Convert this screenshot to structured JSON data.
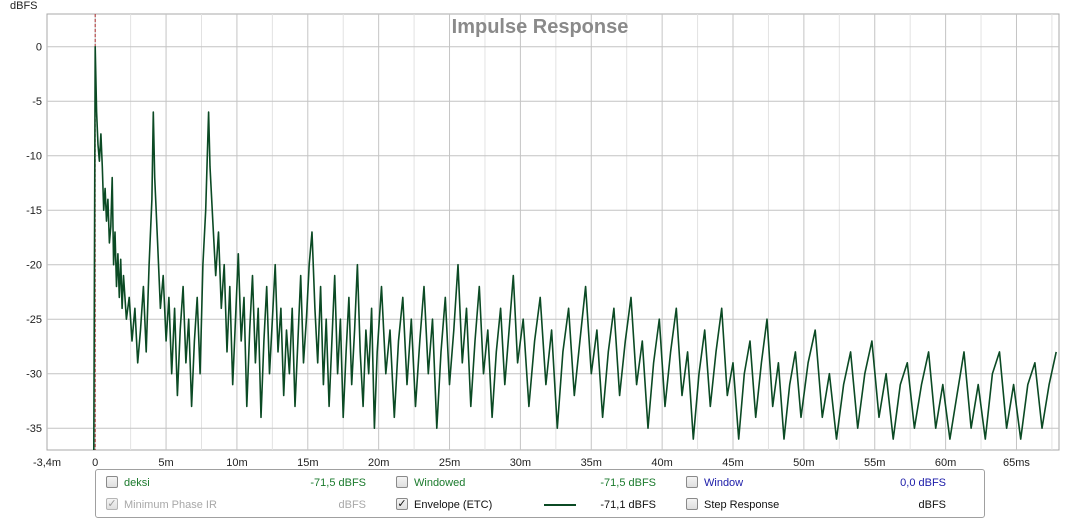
{
  "chart_data": {
    "type": "line",
    "title": "Impulse Response",
    "ylabel": "dBFS",
    "xlabel": "",
    "xlim": [
      -3.4,
      68
    ],
    "ylim": [
      -37,
      3
    ],
    "x_ticks": [
      {
        "v": -3.4,
        "label": "-3,4m"
      },
      {
        "v": 0,
        "label": "0"
      },
      {
        "v": 5,
        "label": "5m"
      },
      {
        "v": 10,
        "label": "10m"
      },
      {
        "v": 15,
        "label": "15m"
      },
      {
        "v": 20,
        "label": "20m"
      },
      {
        "v": 25,
        "label": "25m"
      },
      {
        "v": 30,
        "label": "30m"
      },
      {
        "v": 35,
        "label": "35m"
      },
      {
        "v": 40,
        "label": "40m"
      },
      {
        "v": 45,
        "label": "45m"
      },
      {
        "v": 50,
        "label": "50m"
      },
      {
        "v": 55,
        "label": "55m"
      },
      {
        "v": 60,
        "label": "60m"
      },
      {
        "v": 65,
        "label": "65ms"
      }
    ],
    "y_ticks": [
      {
        "v": 0,
        "label": "0"
      },
      {
        "v": -5,
        "label": "-5"
      },
      {
        "v": -10,
        "label": "-10"
      },
      {
        "v": -15,
        "label": "-15"
      },
      {
        "v": -20,
        "label": "-20"
      },
      {
        "v": -25,
        "label": "-25"
      },
      {
        "v": -30,
        "label": "-30"
      },
      {
        "v": -35,
        "label": "-35"
      }
    ],
    "grid": true,
    "marker_x": 0,
    "series": [
      {
        "name": "Envelope (ETC)",
        "color": "#0b4a24",
        "points": [
          [
            -0.1,
            -37
          ],
          [
            0,
            0
          ],
          [
            0.1,
            -6
          ],
          [
            0.2,
            -9
          ],
          [
            0.3,
            -10.5
          ],
          [
            0.4,
            -8
          ],
          [
            0.5,
            -11
          ],
          [
            0.6,
            -15
          ],
          [
            0.7,
            -13
          ],
          [
            0.8,
            -16
          ],
          [
            0.9,
            -14
          ],
          [
            1.0,
            -18
          ],
          [
            1.1,
            -16.5
          ],
          [
            1.2,
            -12
          ],
          [
            1.3,
            -20
          ],
          [
            1.4,
            -17
          ],
          [
            1.5,
            -22
          ],
          [
            1.6,
            -19
          ],
          [
            1.7,
            -23
          ],
          [
            1.8,
            -19.5
          ],
          [
            1.9,
            -24
          ],
          [
            2.0,
            -21
          ],
          [
            2.2,
            -25
          ],
          [
            2.4,
            -23
          ],
          [
            2.6,
            -27
          ],
          [
            2.8,
            -24
          ],
          [
            3.0,
            -29
          ],
          [
            3.2,
            -26
          ],
          [
            3.4,
            -22
          ],
          [
            3.6,
            -28
          ],
          [
            3.8,
            -20
          ],
          [
            4.0,
            -14
          ],
          [
            4.1,
            -6
          ],
          [
            4.2,
            -12
          ],
          [
            4.4,
            -18
          ],
          [
            4.6,
            -24
          ],
          [
            4.8,
            -21
          ],
          [
            5.0,
            -27
          ],
          [
            5.2,
            -23
          ],
          [
            5.4,
            -30
          ],
          [
            5.6,
            -24
          ],
          [
            5.8,
            -32
          ],
          [
            6.0,
            -26
          ],
          [
            6.2,
            -22
          ],
          [
            6.4,
            -29
          ],
          [
            6.6,
            -25
          ],
          [
            6.8,
            -33
          ],
          [
            7.0,
            -27
          ],
          [
            7.2,
            -23
          ],
          [
            7.4,
            -30
          ],
          [
            7.6,
            -20
          ],
          [
            7.8,
            -15
          ],
          [
            8.0,
            -6
          ],
          [
            8.1,
            -11
          ],
          [
            8.3,
            -16
          ],
          [
            8.5,
            -21
          ],
          [
            8.7,
            -17
          ],
          [
            8.9,
            -24
          ],
          [
            9.1,
            -20
          ],
          [
            9.3,
            -28
          ],
          [
            9.5,
            -22
          ],
          [
            9.7,
            -31
          ],
          [
            9.9,
            -25
          ],
          [
            10.1,
            -19
          ],
          [
            10.3,
            -27
          ],
          [
            10.5,
            -23
          ],
          [
            10.7,
            -33
          ],
          [
            10.9,
            -26
          ],
          [
            11.1,
            -21
          ],
          [
            11.3,
            -29
          ],
          [
            11.5,
            -24
          ],
          [
            11.7,
            -34
          ],
          [
            11.9,
            -27
          ],
          [
            12.1,
            -22
          ],
          [
            12.3,
            -30
          ],
          [
            12.5,
            -25
          ],
          [
            12.7,
            -20
          ],
          [
            12.9,
            -28
          ],
          [
            13.1,
            -24
          ],
          [
            13.3,
            -32
          ],
          [
            13.5,
            -26
          ],
          [
            13.7,
            -30
          ],
          [
            13.9,
            -24
          ],
          [
            14.1,
            -33
          ],
          [
            14.3,
            -27
          ],
          [
            14.5,
            -21
          ],
          [
            14.7,
            -29
          ],
          [
            14.9,
            -25
          ],
          [
            15.1,
            -20
          ],
          [
            15.3,
            -17
          ],
          [
            15.5,
            -24
          ],
          [
            15.7,
            -29
          ],
          [
            15.9,
            -22
          ],
          [
            16.1,
            -31
          ],
          [
            16.3,
            -25
          ],
          [
            16.5,
            -33
          ],
          [
            16.7,
            -27
          ],
          [
            16.9,
            -21
          ],
          [
            17.1,
            -30
          ],
          [
            17.3,
            -25
          ],
          [
            17.5,
            -34
          ],
          [
            17.7,
            -28
          ],
          [
            17.9,
            -23
          ],
          [
            18.1,
            -31
          ],
          [
            18.3,
            -26
          ],
          [
            18.5,
            -20
          ],
          [
            18.7,
            -28
          ],
          [
            18.9,
            -33
          ],
          [
            19.1,
            -26
          ],
          [
            19.3,
            -30
          ],
          [
            19.5,
            -24
          ],
          [
            19.7,
            -35
          ],
          [
            19.9,
            -28
          ],
          [
            20.2,
            -22
          ],
          [
            20.5,
            -30
          ],
          [
            20.8,
            -26
          ],
          [
            21.1,
            -34
          ],
          [
            21.4,
            -27
          ],
          [
            21.7,
            -23
          ],
          [
            22.0,
            -31
          ],
          [
            22.3,
            -25
          ],
          [
            22.6,
            -33
          ],
          [
            22.9,
            -27
          ],
          [
            23.2,
            -22
          ],
          [
            23.5,
            -30
          ],
          [
            23.8,
            -25
          ],
          [
            24.1,
            -35
          ],
          [
            24.4,
            -28
          ],
          [
            24.7,
            -23
          ],
          [
            25.0,
            -31
          ],
          [
            25.3,
            -26
          ],
          [
            25.6,
            -20
          ],
          [
            25.9,
            -29
          ],
          [
            26.2,
            -24
          ],
          [
            26.5,
            -33
          ],
          [
            26.8,
            -27
          ],
          [
            27.1,
            -22
          ],
          [
            27.4,
            -30
          ],
          [
            27.7,
            -26
          ],
          [
            28.0,
            -34
          ],
          [
            28.3,
            -28
          ],
          [
            28.6,
            -24
          ],
          [
            28.9,
            -31
          ],
          [
            29.2,
            -26
          ],
          [
            29.5,
            -21
          ],
          [
            29.8,
            -29
          ],
          [
            30.2,
            -25
          ],
          [
            30.6,
            -33
          ],
          [
            31.0,
            -27
          ],
          [
            31.4,
            -23
          ],
          [
            31.8,
            -31
          ],
          [
            32.2,
            -26
          ],
          [
            32.6,
            -35
          ],
          [
            33.0,
            -28
          ],
          [
            33.4,
            -24
          ],
          [
            33.8,
            -32
          ],
          [
            34.2,
            -27
          ],
          [
            34.6,
            -22
          ],
          [
            35.0,
            -30
          ],
          [
            35.4,
            -26
          ],
          [
            35.8,
            -34
          ],
          [
            36.2,
            -28
          ],
          [
            36.6,
            -24
          ],
          [
            37.0,
            -32
          ],
          [
            37.4,
            -27
          ],
          [
            37.8,
            -23
          ],
          [
            38.2,
            -31
          ],
          [
            38.6,
            -27
          ],
          [
            39.0,
            -35
          ],
          [
            39.4,
            -29
          ],
          [
            39.8,
            -25
          ],
          [
            40.2,
            -33
          ],
          [
            40.6,
            -28
          ],
          [
            41.0,
            -24
          ],
          [
            41.4,
            -32
          ],
          [
            41.8,
            -28
          ],
          [
            42.2,
            -36
          ],
          [
            42.6,
            -30
          ],
          [
            43.0,
            -26
          ],
          [
            43.4,
            -33
          ],
          [
            43.8,
            -28
          ],
          [
            44.2,
            -24
          ],
          [
            44.6,
            -32
          ],
          [
            45.0,
            -29
          ],
          [
            45.4,
            -36
          ],
          [
            45.8,
            -30
          ],
          [
            46.2,
            -27
          ],
          [
            46.6,
            -34
          ],
          [
            47.0,
            -29
          ],
          [
            47.4,
            -25
          ],
          [
            47.8,
            -33
          ],
          [
            48.2,
            -29
          ],
          [
            48.6,
            -36
          ],
          [
            49.0,
            -31
          ],
          [
            49.4,
            -28
          ],
          [
            49.8,
            -34
          ],
          [
            50.3,
            -29
          ],
          [
            50.8,
            -26
          ],
          [
            51.3,
            -34
          ],
          [
            51.8,
            -30
          ],
          [
            52.3,
            -36
          ],
          [
            52.8,
            -31
          ],
          [
            53.3,
            -28
          ],
          [
            53.8,
            -35
          ],
          [
            54.3,
            -30
          ],
          [
            54.8,
            -27
          ],
          [
            55.3,
            -34
          ],
          [
            55.8,
            -30
          ],
          [
            56.3,
            -36
          ],
          [
            56.8,
            -31
          ],
          [
            57.3,
            -29
          ],
          [
            57.8,
            -35
          ],
          [
            58.3,
            -31
          ],
          [
            58.8,
            -28
          ],
          [
            59.3,
            -35
          ],
          [
            59.8,
            -31
          ],
          [
            60.3,
            -36
          ],
          [
            60.8,
            -32
          ],
          [
            61.3,
            -28
          ],
          [
            61.8,
            -35
          ],
          [
            62.3,
            -31
          ],
          [
            62.8,
            -36
          ],
          [
            63.3,
            -30
          ],
          [
            63.8,
            -28
          ],
          [
            64.3,
            -35
          ],
          [
            64.8,
            -31
          ],
          [
            65.3,
            -36
          ],
          [
            65.8,
            -31
          ],
          [
            66.3,
            -29
          ],
          [
            66.8,
            -35
          ],
          [
            67.3,
            -31
          ],
          [
            67.8,
            -28
          ]
        ]
      }
    ]
  },
  "legend": {
    "rows": [
      [
        {
          "label": "deksi",
          "value": "-71,5 dBFS",
          "checked": false,
          "disabled": false,
          "color": "#1a7a2c",
          "value_color": "#1a7a2c",
          "swatch": false
        },
        {
          "label": "Windowed",
          "value": "-71,5 dBFS",
          "checked": false,
          "disabled": false,
          "color": "#1a7a2c",
          "value_color": "#1a7a2c",
          "swatch": false
        },
        {
          "label": "Window",
          "value": "0,0 dBFS",
          "checked": false,
          "disabled": false,
          "color": "#1a1aa8",
          "value_color": "#1a1aa8",
          "swatch": false
        }
      ],
      [
        {
          "label": "Minimum Phase IR",
          "value": "dBFS",
          "checked": true,
          "disabled": true,
          "color": "#a8a8a8",
          "value_color": "#a8a8a8",
          "swatch": false
        },
        {
          "label": "Envelope (ETC)",
          "value": "-71,1 dBFS",
          "checked": true,
          "disabled": false,
          "color": "#111111",
          "value_color": "#111111",
          "swatch": true,
          "swatch_color": "#0b4a24"
        },
        {
          "label": "Step Response",
          "value": "dBFS",
          "checked": false,
          "disabled": false,
          "color": "#111111",
          "value_color": "#111111",
          "swatch": false
        }
      ]
    ]
  }
}
